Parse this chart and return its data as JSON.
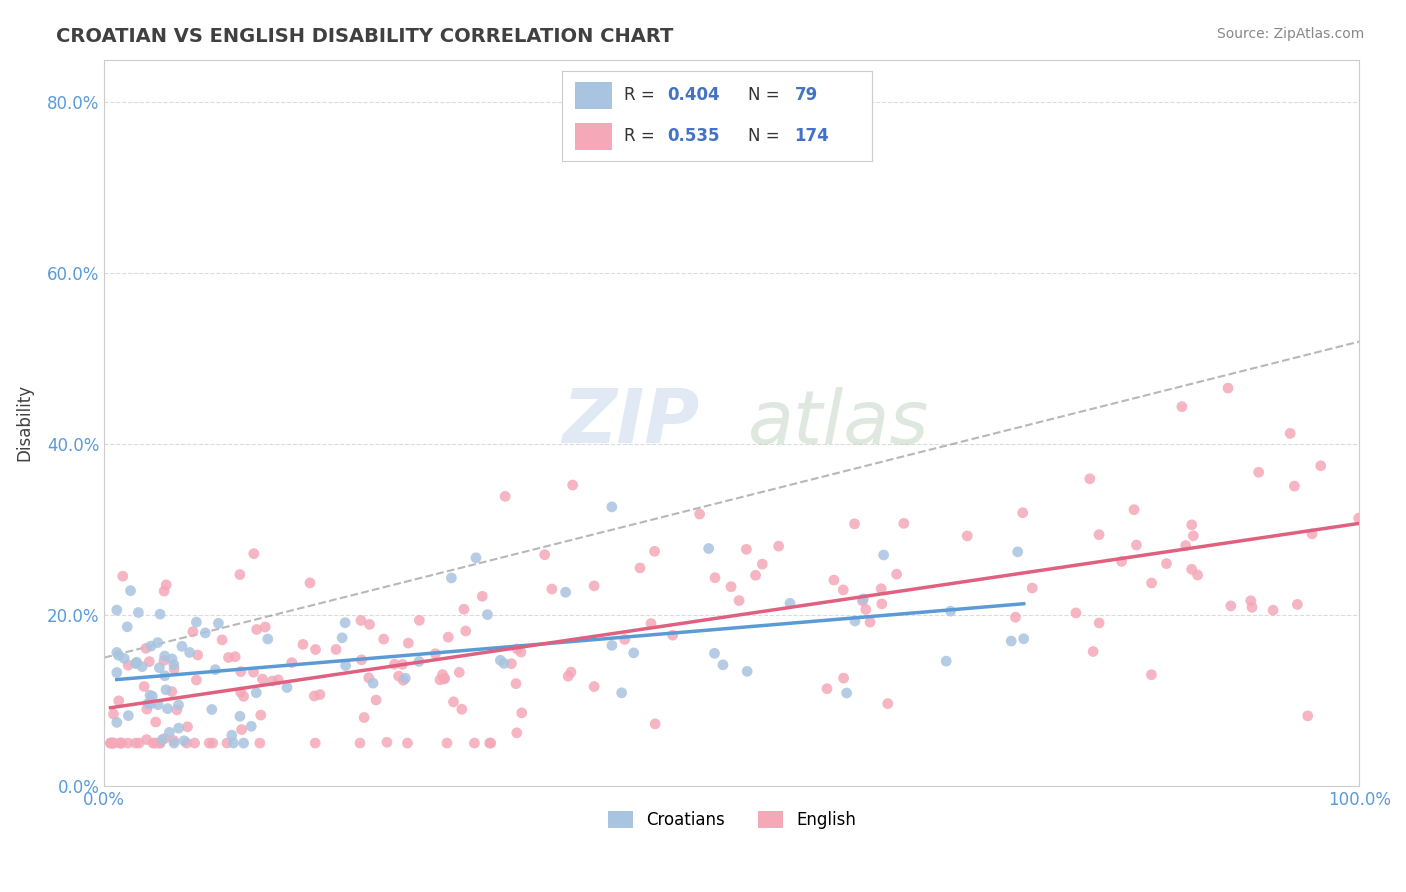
{
  "title": "CROATIAN VS ENGLISH DISABILITY CORRELATION CHART",
  "source": "Source: ZipAtlas.com",
  "ylabel": "Disability",
  "xlim": [
    0.0,
    1.0
  ],
  "ylim": [
    0.0,
    0.85
  ],
  "xtick_labels": [
    "0.0%",
    "100.0%"
  ],
  "ytick_labels": [
    "0.0%",
    "20.0%",
    "40.0%",
    "60.0%",
    "80.0%"
  ],
  "ytick_values": [
    0.0,
    0.2,
    0.4,
    0.6,
    0.8
  ],
  "croatian_R": 0.404,
  "croatian_N": 79,
  "english_R": 0.535,
  "english_N": 174,
  "croatian_color": "#a8c4e0",
  "english_color": "#f4a8b8",
  "croatian_line_color": "#5b9bd5",
  "english_line_color": "#e06080",
  "background_color": "#ffffff",
  "grid_color": "#cccccc",
  "title_color": "#404040",
  "legend_R_color": "#4472c4"
}
